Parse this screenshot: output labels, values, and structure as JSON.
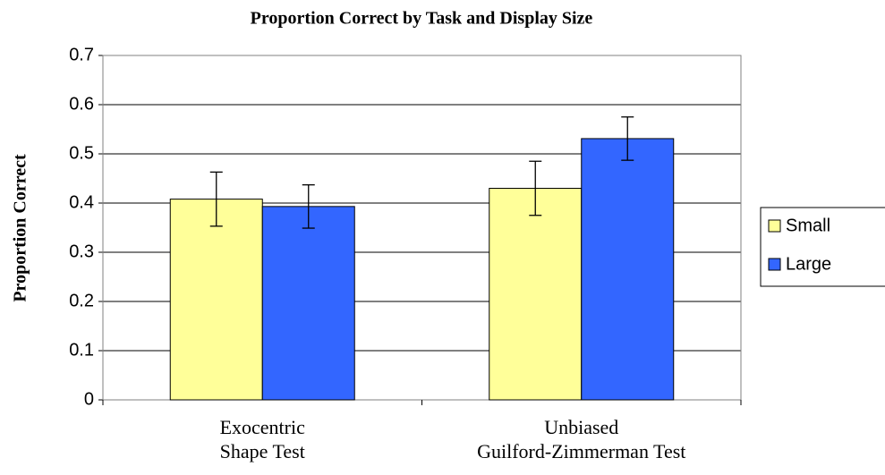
{
  "chart_data": {
    "type": "bar",
    "title": "Proportion Correct by Task and Display Size",
    "y_label": "Proportion Correct",
    "categories": [
      [
        "Exocentric",
        "Shape Test"
      ],
      [
        "Unbiased",
        "Guilford-Zimmerman Test"
      ]
    ],
    "series": [
      {
        "name": "Small",
        "color": "#ffff99",
        "values": [
          0.408,
          0.43
        ],
        "errors": [
          0.055,
          0.055
        ]
      },
      {
        "name": "Large",
        "color": "#3366ff",
        "values": [
          0.393,
          0.531
        ],
        "errors": [
          0.044,
          0.044
        ]
      }
    ],
    "ylim": [
      0,
      0.7
    ],
    "yticks": [
      0,
      0.1,
      0.2,
      0.3,
      0.4,
      0.5,
      0.6,
      0.7
    ],
    "grid": true,
    "legend": "right"
  }
}
